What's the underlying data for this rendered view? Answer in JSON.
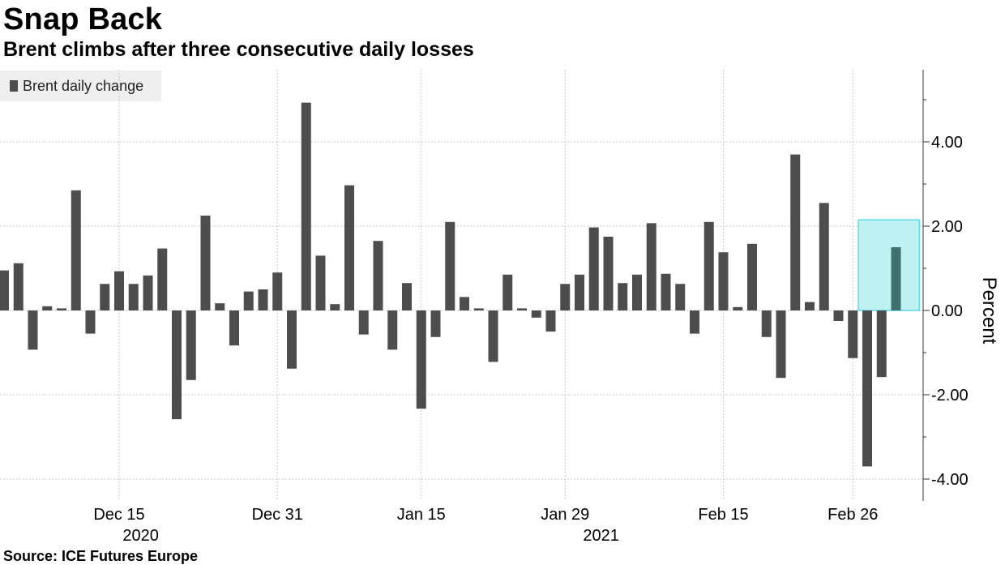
{
  "header": {
    "title": "Snap Back",
    "subtitle": "Brent climbs after three consecutive daily losses"
  },
  "legend": {
    "label": "Brent daily change",
    "color": "#4d4d4d"
  },
  "footer": {
    "source": "Source: ICE Futures Europe"
  },
  "chart_data": {
    "type": "bar",
    "ylabel": "Percent",
    "ylim": [
      -4.6,
      5.7
    ],
    "yticks": [
      "4.00",
      "2.00",
      "0.00",
      "-2.00",
      "-4.00"
    ],
    "ytick_values": [
      4,
      2,
      0,
      -2,
      -4
    ],
    "xticks": [
      {
        "label": "Dec 15",
        "index": 8
      },
      {
        "label": "Dec 31",
        "index": 19
      },
      {
        "label": "Jan 15",
        "index": 29
      },
      {
        "label": "Jan 29",
        "index": 39
      },
      {
        "label": "Feb 15",
        "index": 50
      },
      {
        "label": "Feb 26",
        "index": 59
      }
    ],
    "year_labels": [
      {
        "label": "2020",
        "index": 9.5
      },
      {
        "label": "2021",
        "index": 41.5
      }
    ],
    "grid": true,
    "bar_color": "#4d4d4d",
    "highlight": {
      "color": "#b3f0f0",
      "border": "#5fd9e3",
      "from_index": 60,
      "to_index": 62,
      "value_range": [
        0,
        2.15
      ]
    },
    "series": [
      {
        "name": "Brent daily change",
        "values": [
          0.95,
          1.12,
          -0.93,
          0.1,
          0.05,
          2.85,
          -0.55,
          0.63,
          0.93,
          0.63,
          0.83,
          1.47,
          -2.58,
          -1.65,
          2.25,
          0.17,
          -0.83,
          0.45,
          0.5,
          0.9,
          -1.38,
          4.93,
          1.3,
          0.15,
          2.97,
          -0.57,
          1.65,
          -0.93,
          0.65,
          -2.33,
          -0.63,
          2.1,
          0.32,
          0.05,
          -1.22,
          0.85,
          0.05,
          -0.17,
          -0.5,
          0.63,
          0.85,
          1.97,
          1.75,
          0.65,
          0.85,
          2.07,
          0.87,
          0.63,
          -0.55,
          2.1,
          1.38,
          0.08,
          1.58,
          -0.63,
          -1.6,
          3.7,
          0.2,
          2.55,
          -0.25,
          -1.13,
          -3.7,
          -1.58,
          1.5
        ]
      }
    ]
  }
}
